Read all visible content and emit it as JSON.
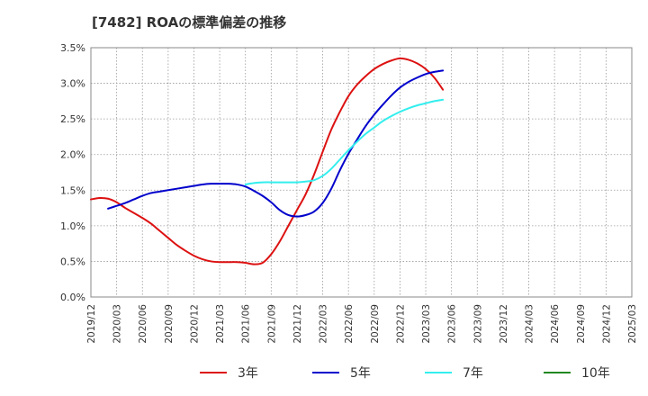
{
  "chart_data": {
    "type": "line",
    "title": "[7482]  ROAの標準偏差の推移",
    "xlabel": "",
    "ylabel": "",
    "y_tick_labels": [
      "0.0%",
      "0.5%",
      "1.0%",
      "1.5%",
      "2.0%",
      "2.5%",
      "3.0%",
      "3.5%"
    ],
    "ylim": [
      0,
      3.5
    ],
    "x_tick_labels": [
      "2019/12",
      "2020/03",
      "2020/06",
      "2020/09",
      "2020/12",
      "2021/03",
      "2021/06",
      "2021/09",
      "2021/12",
      "2022/03",
      "2022/06",
      "2022/09",
      "2022/12",
      "2023/03",
      "2023/06",
      "2023/09",
      "2023/12",
      "2024/03",
      "2024/06",
      "2024/09",
      "2024/12",
      "2025/03"
    ],
    "grid": true,
    "legend_position": "bottom",
    "series": [
      {
        "name": "3年",
        "color": "#dd1111",
        "start_index": 0,
        "values": [
          1.37,
          1.39,
          1.38,
          1.33,
          1.25,
          1.18,
          1.11,
          1.03,
          0.93,
          0.83,
          0.73,
          0.65,
          0.58,
          0.53,
          0.5,
          0.49,
          0.49,
          0.49,
          0.48,
          0.46,
          0.48,
          0.6,
          0.78,
          1.0,
          1.22,
          1.44,
          1.72,
          2.04,
          2.35,
          2.6,
          2.82,
          2.98,
          3.1,
          3.2,
          3.27,
          3.32,
          3.35,
          3.33,
          3.28,
          3.2,
          3.08,
          2.91
        ]
      },
      {
        "name": "5年",
        "color": "#0000cc",
        "start_index": 2,
        "values": [
          1.24,
          1.28,
          1.32,
          1.37,
          1.42,
          1.46,
          1.48,
          1.5,
          1.52,
          1.54,
          1.56,
          1.58,
          1.59,
          1.59,
          1.59,
          1.58,
          1.55,
          1.49,
          1.42,
          1.33,
          1.22,
          1.15,
          1.13,
          1.15,
          1.2,
          1.32,
          1.52,
          1.78,
          2.01,
          2.21,
          2.4,
          2.56,
          2.7,
          2.83,
          2.94,
          3.02,
          3.08,
          3.13,
          3.16,
          3.18
        ]
      },
      {
        "name": "7年",
        "color": "#33eeee",
        "start_index": 18,
        "values": [
          1.58,
          1.6,
          1.61,
          1.61,
          1.61,
          1.61,
          1.61,
          1.62,
          1.64,
          1.7,
          1.8,
          1.93,
          2.06,
          2.18,
          2.29,
          2.38,
          2.47,
          2.54,
          2.6,
          2.65,
          2.69,
          2.72,
          2.75,
          2.77
        ]
      },
      {
        "name": "10年",
        "color": "#228822",
        "start_index": 0,
        "values": []
      }
    ]
  }
}
